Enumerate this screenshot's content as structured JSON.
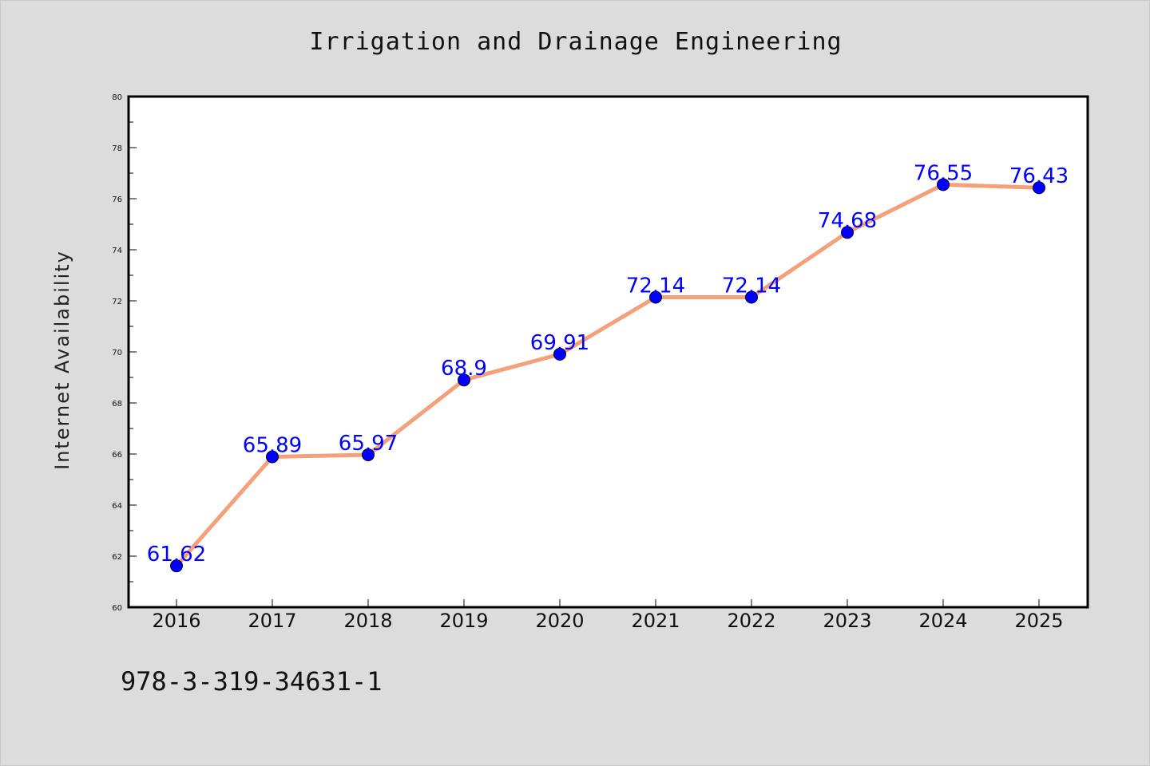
{
  "page": {
    "footer_code": "978-3-319-34631-1"
  },
  "colors": {
    "background": "#dcdcdc",
    "plot_background": "#ffffff",
    "line": "#f4a07a",
    "marker": "#0000ff",
    "data_label": "#0000ff"
  },
  "chart_data": {
    "type": "line",
    "title": "Irrigation and Drainage Engineering",
    "xlabel": "",
    "ylabel": "Internet Availability",
    "categories": [
      "2016",
      "2017",
      "2018",
      "2019",
      "2020",
      "2021",
      "2022",
      "2023",
      "2024",
      "2025"
    ],
    "series": [
      {
        "values": [
          61.62,
          65.89,
          65.97,
          68.9,
          69.91,
          72.14,
          72.14,
          74.68,
          76.55,
          76.43
        ],
        "labels": [
          "61.62",
          "65.89",
          "65.97",
          "68.9",
          "69.91",
          "72.14",
          "72.14",
          "74.68",
          "76.55",
          "76.43"
        ]
      }
    ],
    "ylim": [
      60,
      80
    ],
    "yticks": [
      "60",
      "62",
      "64",
      "66",
      "68",
      "70",
      "72",
      "74",
      "76",
      "78",
      "80"
    ],
    "grid": false,
    "legend": "none"
  }
}
